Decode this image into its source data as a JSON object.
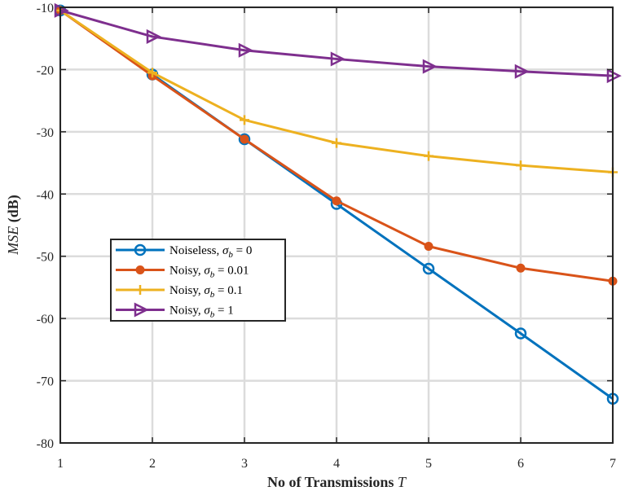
{
  "chart_data": {
    "type": "line",
    "xlabel": "No of Transmissions",
    "xlabel_var": "T",
    "ylabel": "MSE",
    "ylabel_unit": "(dB)",
    "x": [
      1,
      2,
      3,
      4,
      5,
      6,
      7
    ],
    "xlim": [
      1,
      7
    ],
    "ylim": [
      -80,
      -10
    ],
    "xticks": [
      "1",
      "2",
      "3",
      "4",
      "5",
      "6",
      "7"
    ],
    "yticks": [
      "-10",
      "-20",
      "-30",
      "-40",
      "-50",
      "-60",
      "-70",
      "-80"
    ],
    "grid": true,
    "legend_position": "center-left",
    "series": [
      {
        "name": "Noiseless,",
        "sigma_label": "σ",
        "sigma_sub": "b",
        "sigma_value": " = 0",
        "color": "#0072bd",
        "marker": "circle",
        "values": [
          -10.5,
          -20.8,
          -31.2,
          -41.6,
          -52.0,
          -62.4,
          -72.9
        ]
      },
      {
        "name": "Noisy,",
        "sigma_label": "σ",
        "sigma_sub": "b",
        "sigma_value": " = 0.01",
        "color": "#d95319",
        "marker": "filled-circle",
        "values": [
          -10.5,
          -21.0,
          -31.2,
          -41.1,
          -48.4,
          -51.9,
          -54.0
        ]
      },
      {
        "name": "Noisy,",
        "sigma_label": "σ",
        "sigma_sub": "b",
        "sigma_value": " = 0.1",
        "color": "#edb120",
        "marker": "plus",
        "values": [
          -10.5,
          -20.5,
          -28.1,
          -31.8,
          -33.9,
          -35.4,
          -36.5
        ]
      },
      {
        "name": "Noisy,",
        "sigma_label": "σ",
        "sigma_sub": "b",
        "sigma_value": " = 1",
        "color": "#7e2f8e",
        "marker": "triangle-right",
        "values": [
          -10.5,
          -14.7,
          -16.9,
          -18.3,
          -19.5,
          -20.3,
          -21.0
        ]
      }
    ]
  }
}
